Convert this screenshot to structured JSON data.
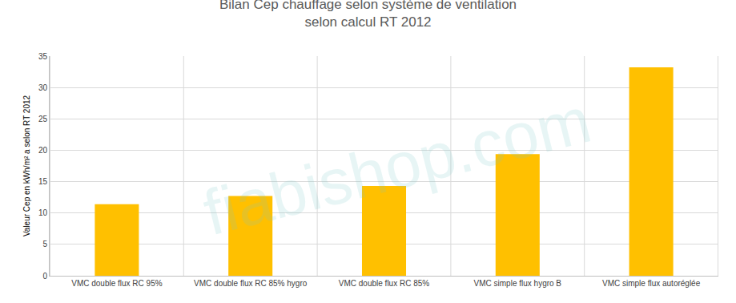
{
  "chart_data": {
    "type": "bar",
    "title": "Bilan Cep chauffage selon système de ventilation",
    "subtitle": "selon calcul RT 2012",
    "y_label": "Valeur Cep en kWh/m² a selon RT 2012",
    "categories": [
      "VMC double flux RC 95%",
      "VMC double flux RC 85% hygro",
      "VMC double flux RC 85%",
      "VMC simple flux hygro B",
      "VMC simple flux autoréglée"
    ],
    "values": [
      11.4,
      12.7,
      14.3,
      19.4,
      33.2
    ],
    "color": "#ffc000",
    "ylim": [
      0,
      35
    ],
    "yticks": [
      0,
      5,
      10,
      15,
      20,
      25,
      30,
      35
    ],
    "grid": true,
    "annotations": [
      "fiabishop.com"
    ]
  }
}
